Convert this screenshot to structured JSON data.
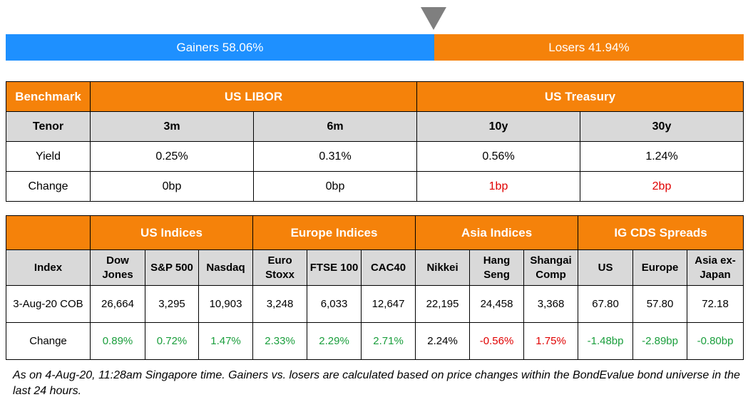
{
  "breadth_bar": {
    "gainers_label": "Gainers 58.06%",
    "losers_label": "Losers 41.94%",
    "gainers_pct": 58.06,
    "losers_pct": 41.94,
    "gainers_color": "#1e90ff",
    "losers_color": "#f5820a"
  },
  "rates_table": {
    "header": {
      "benchmark": "Benchmark",
      "group1": "US LIBOR",
      "group2": "US Treasury"
    },
    "tenor_row": {
      "label": "Tenor",
      "cols": [
        "3m",
        "6m",
        "10y",
        "30y"
      ]
    },
    "yield_row": {
      "label": "Yield",
      "cols": [
        "0.25%",
        "0.31%",
        "0.56%",
        "1.24%"
      ]
    },
    "change_row": {
      "label": "Change",
      "cols": [
        "0bp",
        "0bp",
        "1bp",
        "2bp"
      ]
    }
  },
  "indices_table": {
    "groups": [
      "US Indices",
      "Europe Indices",
      "Asia Indices",
      "IG CDS Spreads"
    ],
    "index_label": "Index",
    "columns": [
      "Dow Jones",
      "S&P 500",
      "Nasdaq",
      "Euro Stoxx",
      "FTSE 100",
      "CAC40",
      "Nikkei",
      "Hang Seng",
      "Shangai Comp",
      "US",
      "Europe",
      "Asia ex-Japan"
    ],
    "date_label": "3-Aug-20 COB",
    "values": [
      "26,664",
      "3,295",
      "10,903",
      "3,248",
      "6,033",
      "12,647",
      "22,195",
      "24,458",
      "3,368",
      "67.80",
      "57.80",
      "72.18"
    ],
    "change_label": "Change",
    "changes": [
      "0.89%",
      "0.72%",
      "1.47%",
      "2.33%",
      "2.29%",
      "2.71%",
      "2.24%",
      "-0.56%",
      "1.75%",
      "-1.48bp",
      "-2.89bp",
      "-0.80bp"
    ]
  },
  "footnote": "As on 4-Aug-20, 11:28am Singapore time. Gainers vs. losers are calculated based on price changes within the BondEvalue bond universe in the last 24 hours."
}
